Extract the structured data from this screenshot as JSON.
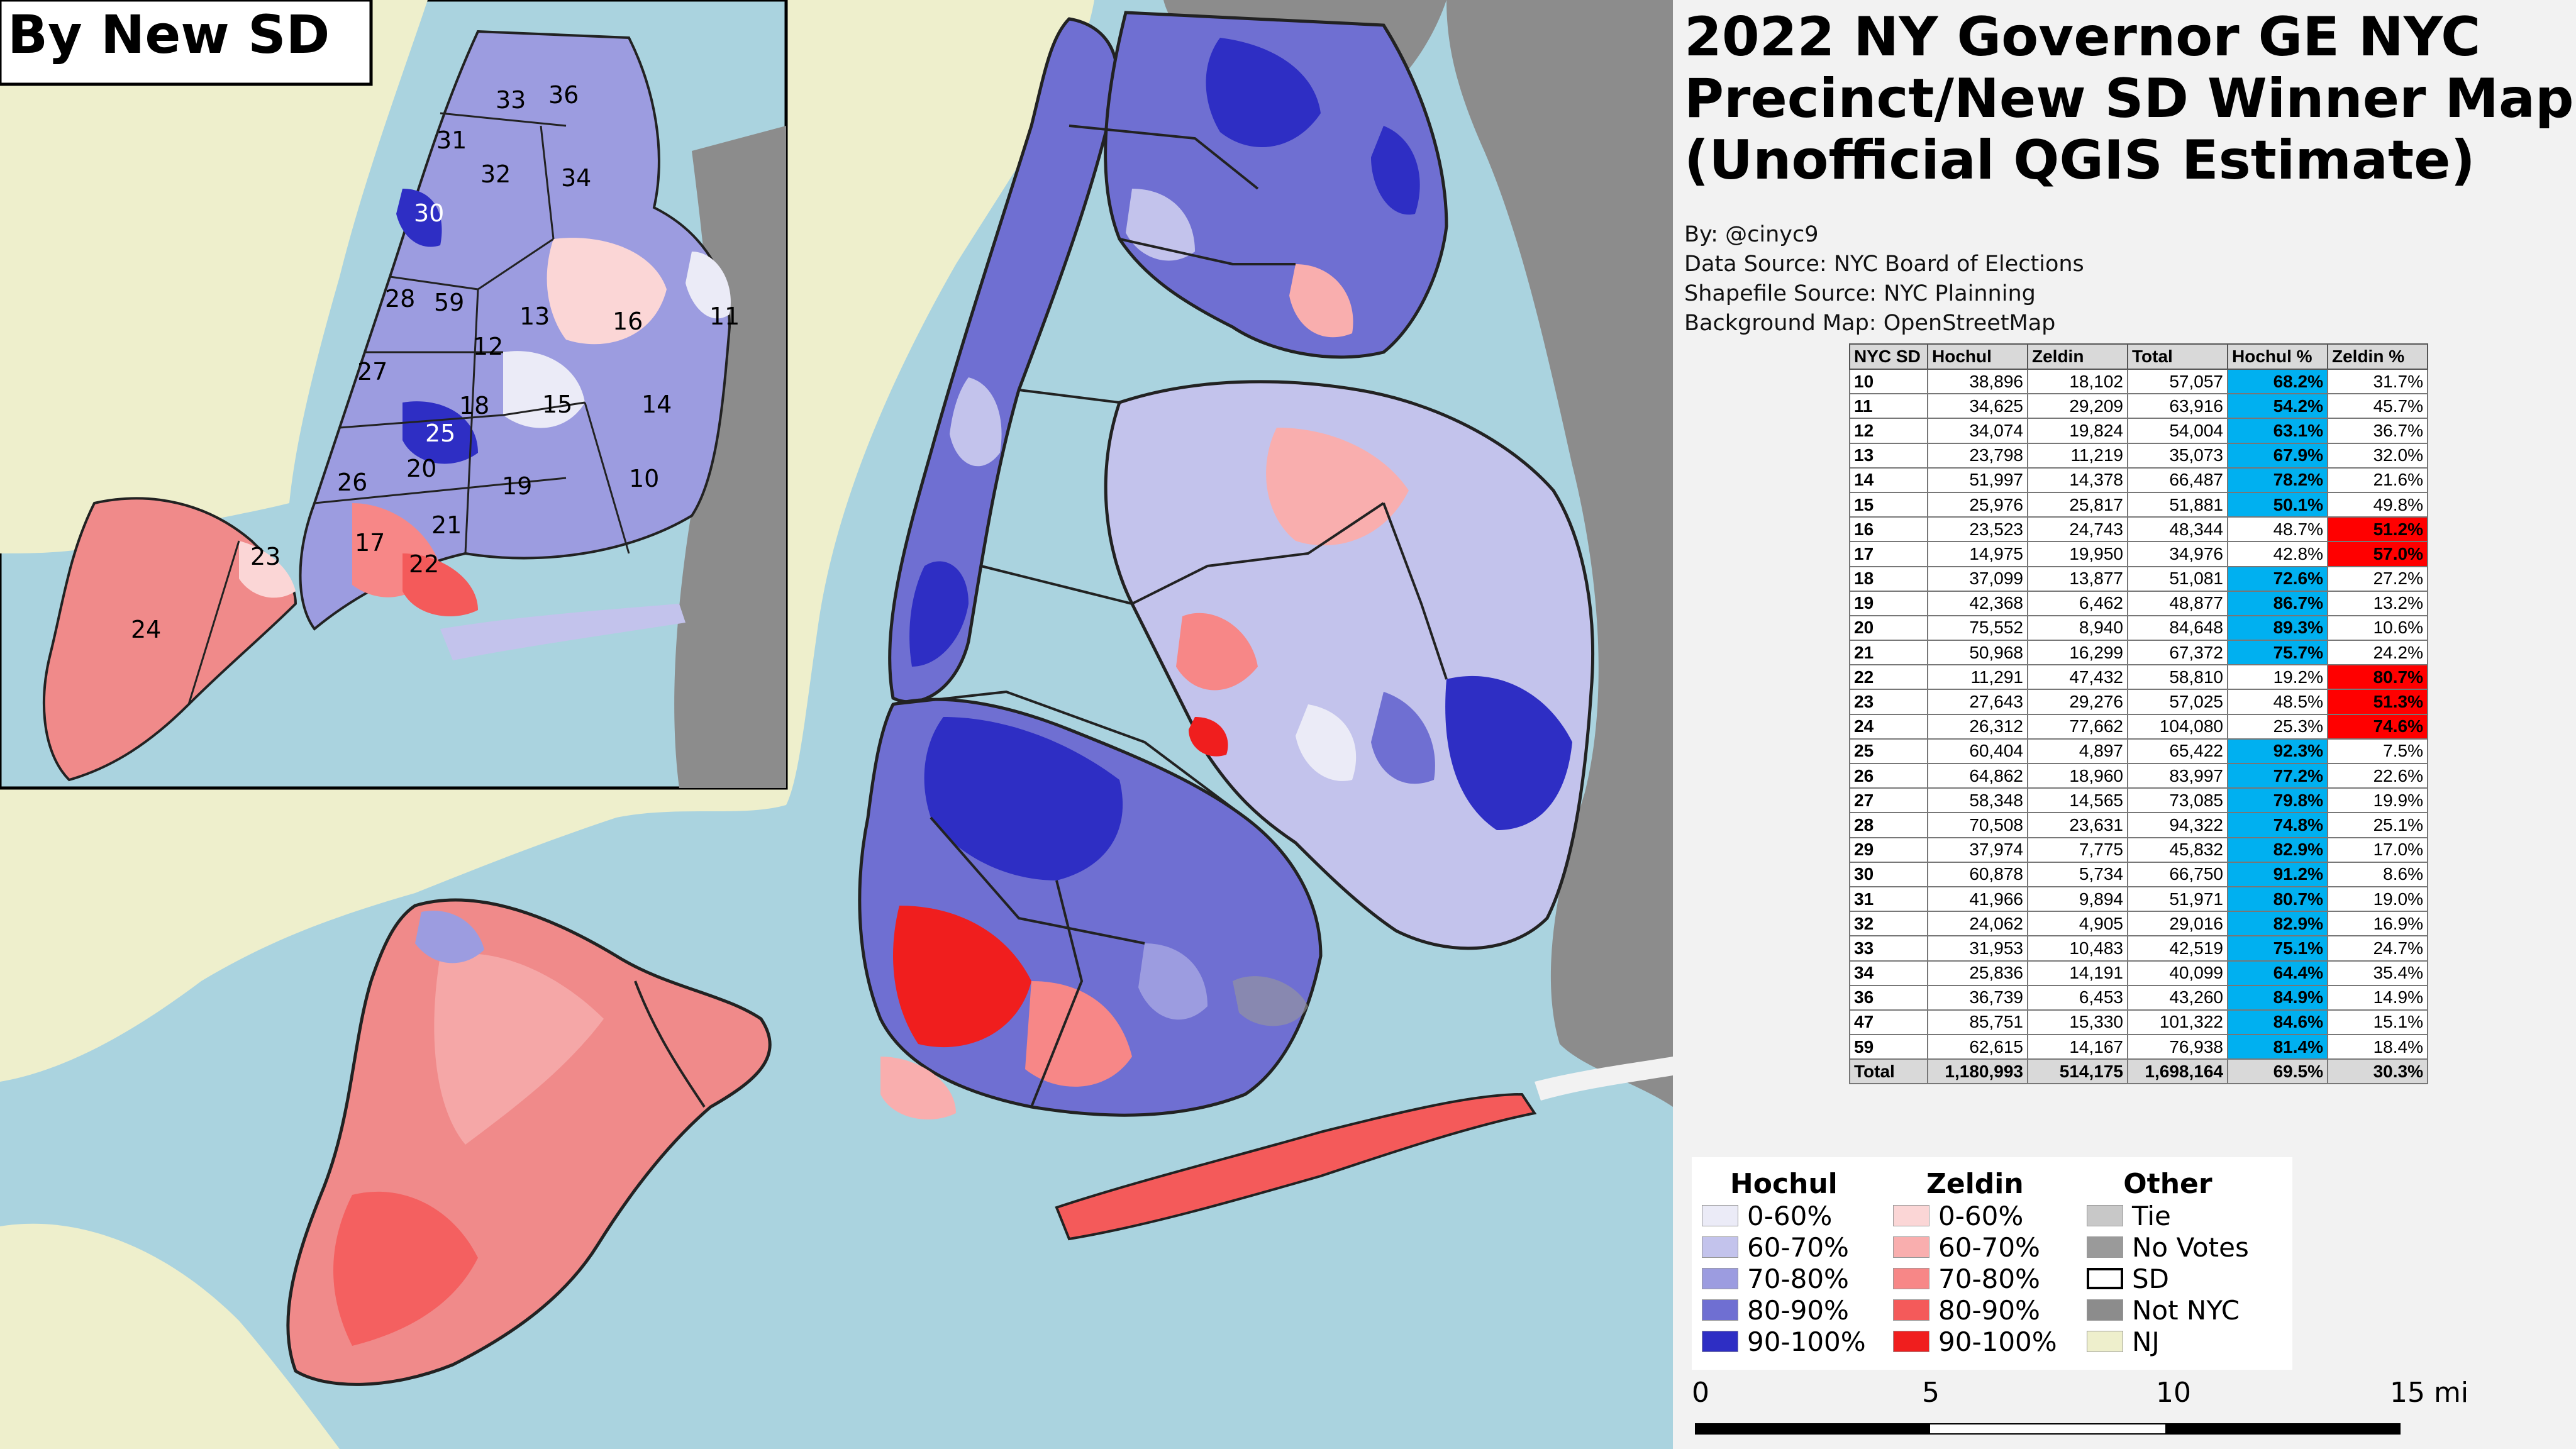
{
  "title": {
    "line1": "2022 NY Governor GE NYC",
    "line2": "Precinct/New SD Winner Map",
    "line3": "(Unofficial QGIS Estimate)"
  },
  "credits": {
    "author": "By: @cinyc9",
    "data_source": "Data Source: NYC Board of Elections",
    "shapefile_source": "Shapefile Source: NYC Plainning",
    "background_map": "Background Map: OpenStreetMap"
  },
  "inset": {
    "label": "By New SD",
    "district_labels": [
      "33",
      "36",
      "31",
      "32",
      "34",
      "30",
      "28",
      "59",
      "13",
      "16",
      "11",
      "12",
      "27",
      "15",
      "18",
      "14",
      "25",
      "20",
      "19",
      "10",
      "26",
      "17",
      "21",
      "22",
      "23",
      "24"
    ]
  },
  "table": {
    "headers": [
      "NYC SD",
      "Hochul",
      "Zeldin",
      "Total",
      "Hochul %",
      "Zeldin %"
    ],
    "rows": [
      {
        "sd": "10",
        "hochul": "38,896",
        "zeldin": "18,102",
        "total": "57,057",
        "hochul_pct": "68.2%",
        "zeldin_pct": "31.7%",
        "winner": "hochul"
      },
      {
        "sd": "11",
        "hochul": "34,625",
        "zeldin": "29,209",
        "total": "63,916",
        "hochul_pct": "54.2%",
        "zeldin_pct": "45.7%",
        "winner": "hochul"
      },
      {
        "sd": "12",
        "hochul": "34,074",
        "zeldin": "19,824",
        "total": "54,004",
        "hochul_pct": "63.1%",
        "zeldin_pct": "36.7%",
        "winner": "hochul"
      },
      {
        "sd": "13",
        "hochul": "23,798",
        "zeldin": "11,219",
        "total": "35,073",
        "hochul_pct": "67.9%",
        "zeldin_pct": "32.0%",
        "winner": "hochul"
      },
      {
        "sd": "14",
        "hochul": "51,997",
        "zeldin": "14,378",
        "total": "66,487",
        "hochul_pct": "78.2%",
        "zeldin_pct": "21.6%",
        "winner": "hochul"
      },
      {
        "sd": "15",
        "hochul": "25,976",
        "zeldin": "25,817",
        "total": "51,881",
        "hochul_pct": "50.1%",
        "zeldin_pct": "49.8%",
        "winner": "hochul"
      },
      {
        "sd": "16",
        "hochul": "23,523",
        "zeldin": "24,743",
        "total": "48,344",
        "hochul_pct": "48.7%",
        "zeldin_pct": "51.2%",
        "winner": "zeldin"
      },
      {
        "sd": "17",
        "hochul": "14,975",
        "zeldin": "19,950",
        "total": "34,976",
        "hochul_pct": "42.8%",
        "zeldin_pct": "57.0%",
        "winner": "zeldin"
      },
      {
        "sd": "18",
        "hochul": "37,099",
        "zeldin": "13,877",
        "total": "51,081",
        "hochul_pct": "72.6%",
        "zeldin_pct": "27.2%",
        "winner": "hochul"
      },
      {
        "sd": "19",
        "hochul": "42,368",
        "zeldin": "6,462",
        "total": "48,877",
        "hochul_pct": "86.7%",
        "zeldin_pct": "13.2%",
        "winner": "hochul"
      },
      {
        "sd": "20",
        "hochul": "75,552",
        "zeldin": "8,940",
        "total": "84,648",
        "hochul_pct": "89.3%",
        "zeldin_pct": "10.6%",
        "winner": "hochul"
      },
      {
        "sd": "21",
        "hochul": "50,968",
        "zeldin": "16,299",
        "total": "67,372",
        "hochul_pct": "75.7%",
        "zeldin_pct": "24.2%",
        "winner": "hochul"
      },
      {
        "sd": "22",
        "hochul": "11,291",
        "zeldin": "47,432",
        "total": "58,810",
        "hochul_pct": "19.2%",
        "zeldin_pct": "80.7%",
        "winner": "zeldin"
      },
      {
        "sd": "23",
        "hochul": "27,643",
        "zeldin": "29,276",
        "total": "57,025",
        "hochul_pct": "48.5%",
        "zeldin_pct": "51.3%",
        "winner": "zeldin"
      },
      {
        "sd": "24",
        "hochul": "26,312",
        "zeldin": "77,662",
        "total": "104,080",
        "hochul_pct": "25.3%",
        "zeldin_pct": "74.6%",
        "winner": "zeldin"
      },
      {
        "sd": "25",
        "hochul": "60,404",
        "zeldin": "4,897",
        "total": "65,422",
        "hochul_pct": "92.3%",
        "zeldin_pct": "7.5%",
        "winner": "hochul"
      },
      {
        "sd": "26",
        "hochul": "64,862",
        "zeldin": "18,960",
        "total": "83,997",
        "hochul_pct": "77.2%",
        "zeldin_pct": "22.6%",
        "winner": "hochul"
      },
      {
        "sd": "27",
        "hochul": "58,348",
        "zeldin": "14,565",
        "total": "73,085",
        "hochul_pct": "79.8%",
        "zeldin_pct": "19.9%",
        "winner": "hochul"
      },
      {
        "sd": "28",
        "hochul": "70,508",
        "zeldin": "23,631",
        "total": "94,322",
        "hochul_pct": "74.8%",
        "zeldin_pct": "25.1%",
        "winner": "hochul"
      },
      {
        "sd": "29",
        "hochul": "37,974",
        "zeldin": "7,775",
        "total": "45,832",
        "hochul_pct": "82.9%",
        "zeldin_pct": "17.0%",
        "winner": "hochul"
      },
      {
        "sd": "30",
        "hochul": "60,878",
        "zeldin": "5,734",
        "total": "66,750",
        "hochul_pct": "91.2%",
        "zeldin_pct": "8.6%",
        "winner": "hochul"
      },
      {
        "sd": "31",
        "hochul": "41,966",
        "zeldin": "9,894",
        "total": "51,971",
        "hochul_pct": "80.7%",
        "zeldin_pct": "19.0%",
        "winner": "hochul"
      },
      {
        "sd": "32",
        "hochul": "24,062",
        "zeldin": "4,905",
        "total": "29,016",
        "hochul_pct": "82.9%",
        "zeldin_pct": "16.9%",
        "winner": "hochul"
      },
      {
        "sd": "33",
        "hochul": "31,953",
        "zeldin": "10,483",
        "total": "42,519",
        "hochul_pct": "75.1%",
        "zeldin_pct": "24.7%",
        "winner": "hochul"
      },
      {
        "sd": "34",
        "hochul": "25,836",
        "zeldin": "14,191",
        "total": "40,099",
        "hochul_pct": "64.4%",
        "zeldin_pct": "35.4%",
        "winner": "hochul"
      },
      {
        "sd": "36",
        "hochul": "36,739",
        "zeldin": "6,453",
        "total": "43,260",
        "hochul_pct": "84.9%",
        "zeldin_pct": "14.9%",
        "winner": "hochul"
      },
      {
        "sd": "47",
        "hochul": "85,751",
        "zeldin": "15,330",
        "total": "101,322",
        "hochul_pct": "84.6%",
        "zeldin_pct": "15.1%",
        "winner": "hochul"
      },
      {
        "sd": "59",
        "hochul": "62,615",
        "zeldin": "14,167",
        "total": "76,938",
        "hochul_pct": "81.4%",
        "zeldin_pct": "18.4%",
        "winner": "hochul"
      }
    ],
    "total": {
      "sd": "Total",
      "hochul": "1,180,993",
      "zeldin": "514,175",
      "total": "1,698,164",
      "hochul_pct": "69.5%",
      "zeldin_pct": "30.3%"
    }
  },
  "legend": {
    "hochul": {
      "heading": "Hochul",
      "items": [
        {
          "label": "0-60%",
          "color": "#ebebf7"
        },
        {
          "label": "60-70%",
          "color": "#c3c3ec"
        },
        {
          "label": "70-80%",
          "color": "#9c9ce0"
        },
        {
          "label": "80-90%",
          "color": "#6f6fd2"
        },
        {
          "label": "90-100%",
          "color": "#2e2ec4"
        }
      ]
    },
    "zeldin": {
      "heading": "Zeldin",
      "items": [
        {
          "label": "0-60%",
          "color": "#fbd6d6"
        },
        {
          "label": "60-70%",
          "color": "#f9aeae"
        },
        {
          "label": "70-80%",
          "color": "#f78787"
        },
        {
          "label": "80-90%",
          "color": "#f45a5a"
        },
        {
          "label": "90-100%",
          "color": "#f01e1e"
        }
      ]
    },
    "other": {
      "heading": "Other",
      "items": [
        {
          "label": "Tie",
          "color": "#c8c8c8"
        },
        {
          "label": "No Votes",
          "color": "#9a9a9a"
        },
        {
          "label": "SD",
          "color": "#ffffff"
        },
        {
          "label": "Not NYC",
          "color": "#8c8c8c"
        },
        {
          "label": "NJ",
          "color": "#eeefcc"
        }
      ]
    }
  },
  "scale": {
    "ticks": [
      "0",
      "5",
      "10",
      "15 mi"
    ]
  },
  "colors": {
    "water": "#aad3df",
    "nj_land": "#eeefcc",
    "not_nyc": "#8c8c8c",
    "hochul_winner": "#00b0f0",
    "zeldin_winner": "#ff0000"
  }
}
